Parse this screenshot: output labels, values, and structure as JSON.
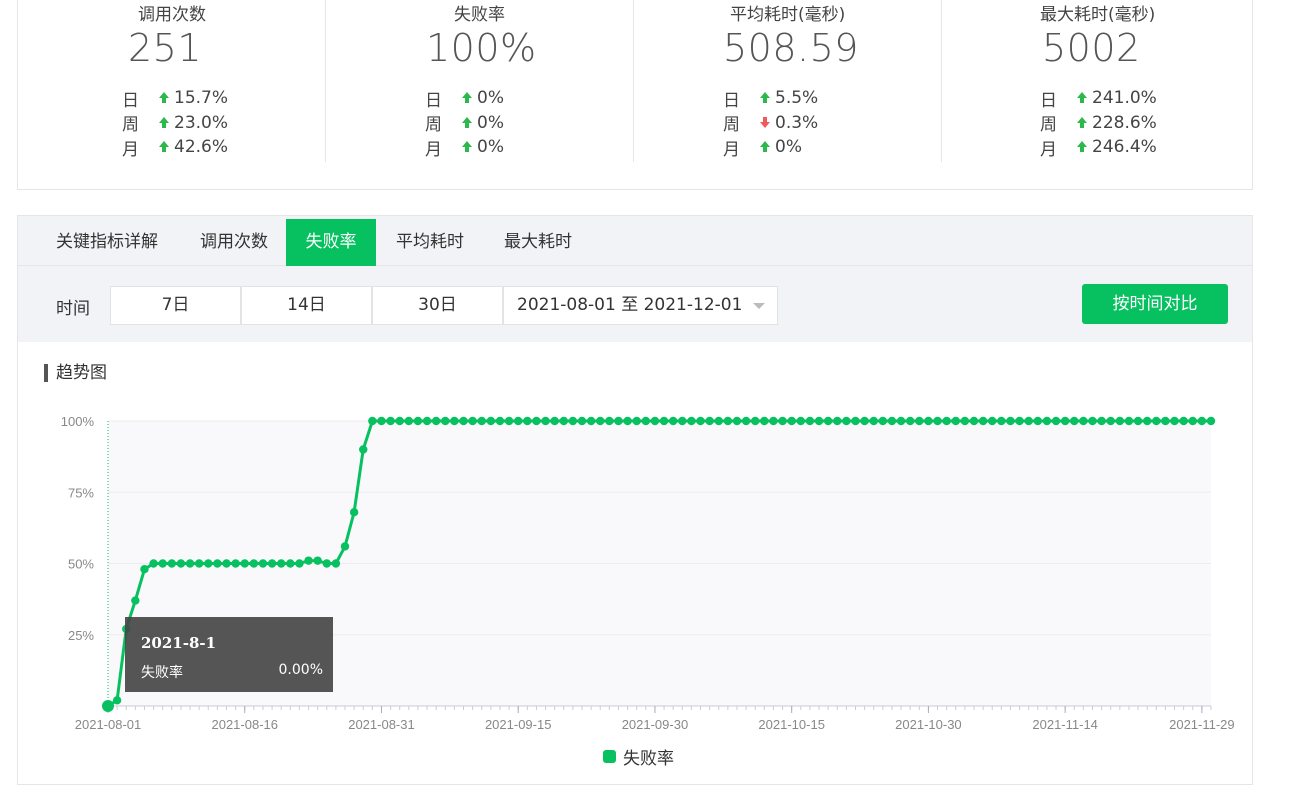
{
  "stats": [
    {
      "title": "调用次数",
      "value": "251",
      "rows": [
        {
          "label": "日",
          "dir": "up",
          "value": "15.7%"
        },
        {
          "label": "周",
          "dir": "up",
          "value": "23.0%"
        },
        {
          "label": "月",
          "dir": "up",
          "value": "42.6%"
        }
      ]
    },
    {
      "title": "失败率",
      "value": "100%",
      "rows": [
        {
          "label": "日",
          "dir": "up",
          "value": "0%"
        },
        {
          "label": "周",
          "dir": "up",
          "value": "0%"
        },
        {
          "label": "月",
          "dir": "up",
          "value": "0%"
        }
      ]
    },
    {
      "title": "平均耗时(毫秒)",
      "value": "508.59",
      "rows": [
        {
          "label": "日",
          "dir": "up",
          "value": "5.5%"
        },
        {
          "label": "周",
          "dir": "down",
          "value": "0.3%"
        },
        {
          "label": "月",
          "dir": "up",
          "value": "0%"
        }
      ]
    },
    {
      "title": "最大耗时(毫秒)",
      "value": "5002",
      "rows": [
        {
          "label": "日",
          "dir": "up",
          "value": "241.0%"
        },
        {
          "label": "周",
          "dir": "up",
          "value": "228.6%"
        },
        {
          "label": "月",
          "dir": "up",
          "value": "246.4%"
        }
      ]
    }
  ],
  "tabs": [
    "关键指标详解",
    "调用次数",
    "失败率",
    "平均耗时",
    "最大耗时"
  ],
  "active_tab": "失败率",
  "filter": {
    "time_label": "时间",
    "ranges": [
      "7日",
      "14日",
      "30日"
    ],
    "date_range": "2021-08-01 至 2021-12-01",
    "compare_label": "按时间对比"
  },
  "section_title": "趋势图",
  "tooltip": {
    "date": "2021-8-1",
    "name": "失败率",
    "value": "0.00%"
  },
  "colors": {
    "accent": "#07c160",
    "up": "#2db84d",
    "down": "#f05a5a"
  },
  "chart_data": {
    "type": "line",
    "ytick_labels": [
      "100%",
      "75%",
      "50%",
      "25%"
    ],
    "ylim": [
      0,
      100
    ],
    "xtick_labels": [
      "2021-08-01",
      "2021-08-16",
      "2021-08-31",
      "2021-09-15",
      "2021-09-30",
      "2021-10-15",
      "2021-10-30",
      "2021-11-14",
      "2021-11-29"
    ],
    "x_start": "2021-08-01",
    "x_end": "2021-11-30",
    "series": [
      {
        "name": "失败率",
        "values": [
          0,
          2,
          27,
          37,
          48,
          50,
          50,
          50,
          50,
          50,
          50,
          50,
          50,
          50,
          50,
          50,
          50,
          50,
          50,
          50,
          50,
          50,
          51,
          51,
          50,
          50,
          56,
          68,
          90,
          100,
          100,
          100,
          100,
          100,
          100,
          100,
          100,
          100,
          100,
          100,
          100,
          100,
          100,
          100,
          100,
          100,
          100,
          100,
          100,
          100,
          100,
          100,
          100,
          100,
          100,
          100,
          100,
          100,
          100,
          100,
          100,
          100,
          100,
          100,
          100,
          100,
          100,
          100,
          100,
          100,
          100,
          100,
          100,
          100,
          100,
          100,
          100,
          100,
          100,
          100,
          100,
          100,
          100,
          100,
          100,
          100,
          100,
          100,
          100,
          100,
          100,
          100,
          100,
          100,
          100,
          100,
          100,
          100,
          100,
          100,
          100,
          100,
          100,
          100,
          100,
          100,
          100,
          100,
          100,
          100,
          100,
          100,
          100,
          100,
          100,
          100,
          100,
          100,
          100,
          100,
          100,
          100
        ]
      }
    ],
    "grid": true,
    "legend": "bottom-center"
  }
}
